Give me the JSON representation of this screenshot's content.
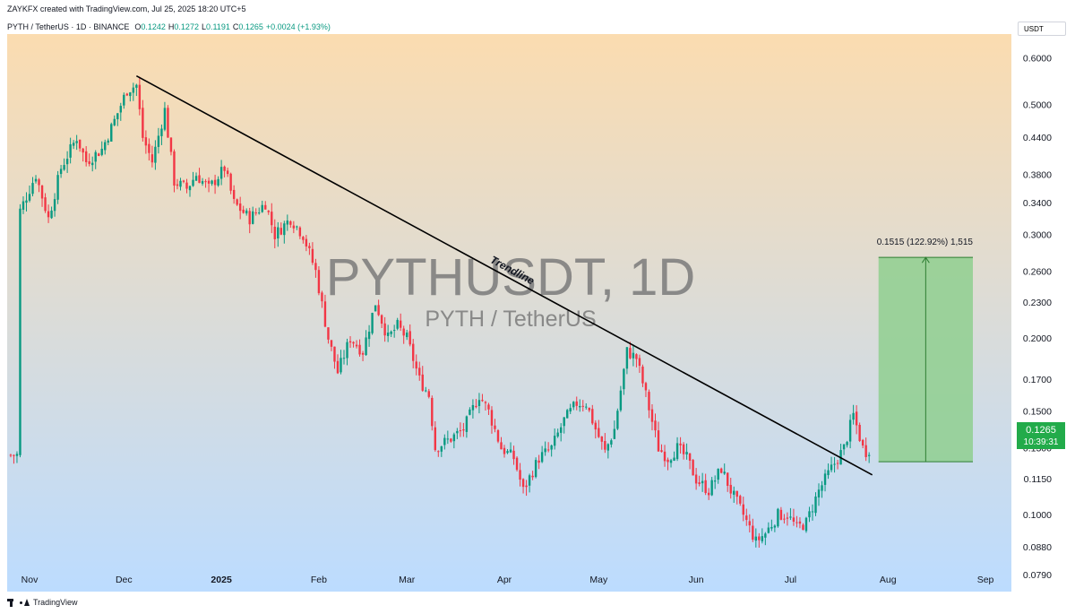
{
  "header": {
    "attribution": "ZAYKFX created with TradingView.com, Jul 25, 2025 18:20 UTC+5"
  },
  "symbol": {
    "name": "PYTH / TetherUS · 1D · BINANCE",
    "open_label": "O",
    "open": "0.1242",
    "high_label": "H",
    "high": "0.1272",
    "low_label": "L",
    "low": "0.1191",
    "close_label": "C",
    "close": "0.1265",
    "change": "+0.0024 (+1.93%)"
  },
  "currency_label": "USDT",
  "price_tag": {
    "price": "0.1265",
    "countdown": "10:39:31"
  },
  "footer": {
    "brand": "TradingView"
  },
  "colors": {
    "up": "#089981",
    "down": "#f23645",
    "trendline": "#000000",
    "target_box": "#8fcf8f",
    "price_tag": "#22ab4a",
    "bg_top": "#fbdcb0",
    "bg_bottom": "#bcdcff"
  },
  "chart_data": {
    "type": "candlestick",
    "title": "PYTHUSDT, 1D",
    "subtitle": "PYTH / TetherUS",
    "y_scale": "log",
    "ylim": [
      0.074,
      0.66
    ],
    "y_ticks": [
      "0.6000",
      "0.5000",
      "0.4400",
      "0.3800",
      "0.3400",
      "0.3000",
      "0.2600",
      "0.2300",
      "0.2000",
      "0.1700",
      "0.1500",
      "0.1300",
      "0.1150",
      "0.1000",
      "0.0880",
      "0.0790"
    ],
    "x_ticks": [
      {
        "label": "Nov",
        "day": 0
      },
      {
        "label": "Dec",
        "day": 30
      },
      {
        "label": "2025",
        "day": 61
      },
      {
        "label": "Feb",
        "day": 92
      },
      {
        "label": "Mar",
        "day": 120
      },
      {
        "label": "Apr",
        "day": 151
      },
      {
        "label": "May",
        "day": 181
      },
      {
        "label": "Jun",
        "day": 212
      },
      {
        "label": "Jul",
        "day": 242
      },
      {
        "label": "Aug",
        "day": 273
      },
      {
        "label": "Sep",
        "day": 304
      }
    ],
    "x_start": "2024-10-29",
    "anchors": [
      [
        -3,
        0.33
      ],
      [
        2,
        0.38
      ],
      [
        6,
        0.32
      ],
      [
        10,
        0.39
      ],
      [
        15,
        0.44
      ],
      [
        18,
        0.4
      ],
      [
        23,
        0.42
      ],
      [
        27,
        0.47
      ],
      [
        31,
        0.53
      ],
      [
        34,
        0.54
      ],
      [
        36,
        0.44
      ],
      [
        39,
        0.4
      ],
      [
        43,
        0.49
      ],
      [
        46,
        0.37
      ],
      [
        50,
        0.36
      ],
      [
        53,
        0.38
      ],
      [
        57,
        0.36
      ],
      [
        62,
        0.39
      ],
      [
        65,
        0.34
      ],
      [
        70,
        0.32
      ],
      [
        75,
        0.34
      ],
      [
        78,
        0.3
      ],
      [
        83,
        0.32
      ],
      [
        87,
        0.3
      ],
      [
        91,
        0.26
      ],
      [
        95,
        0.2
      ],
      [
        98,
        0.175
      ],
      [
        102,
        0.2
      ],
      [
        106,
        0.19
      ],
      [
        110,
        0.23
      ],
      [
        114,
        0.2
      ],
      [
        117,
        0.21
      ],
      [
        120,
        0.2
      ],
      [
        124,
        0.17
      ],
      [
        127,
        0.16
      ],
      [
        129,
        0.13
      ],
      [
        134,
        0.135
      ],
      [
        138,
        0.14
      ],
      [
        143,
        0.16
      ],
      [
        146,
        0.15
      ],
      [
        150,
        0.13
      ],
      [
        154,
        0.125
      ],
      [
        157,
        0.11
      ],
      [
        162,
        0.125
      ],
      [
        166,
        0.13
      ],
      [
        170,
        0.145
      ],
      [
        174,
        0.155
      ],
      [
        177,
        0.155
      ],
      [
        180,
        0.14
      ],
      [
        183,
        0.128
      ],
      [
        186,
        0.14
      ],
      [
        190,
        0.19
      ],
      [
        193,
        0.185
      ],
      [
        196,
        0.16
      ],
      [
        200,
        0.13
      ],
      [
        203,
        0.125
      ],
      [
        206,
        0.13
      ],
      [
        209,
        0.125
      ],
      [
        212,
        0.115
      ],
      [
        216,
        0.11
      ],
      [
        220,
        0.12
      ],
      [
        223,
        0.11
      ],
      [
        227,
        0.1
      ],
      [
        231,
        0.09
      ],
      [
        234,
        0.093
      ],
      [
        238,
        0.1
      ],
      [
        241,
        0.1
      ],
      [
        244,
        0.095
      ],
      [
        247,
        0.097
      ],
      [
        251,
        0.11
      ],
      [
        255,
        0.12
      ],
      [
        259,
        0.13
      ],
      [
        262,
        0.148
      ],
      [
        265,
        0.13
      ],
      [
        267,
        0.1265
      ]
    ],
    "last_close": 0.1265,
    "trendline": {
      "label": "Trendline",
      "start": {
        "day": 34,
        "price": 0.56
      },
      "end": {
        "day": 268,
        "price": 0.117
      }
    },
    "measure": {
      "label": "0.1515 (122.92%) 1,515",
      "from_price": 0.1232,
      "to_price": 0.2747,
      "start_day": 270,
      "end_day": 300
    }
  }
}
